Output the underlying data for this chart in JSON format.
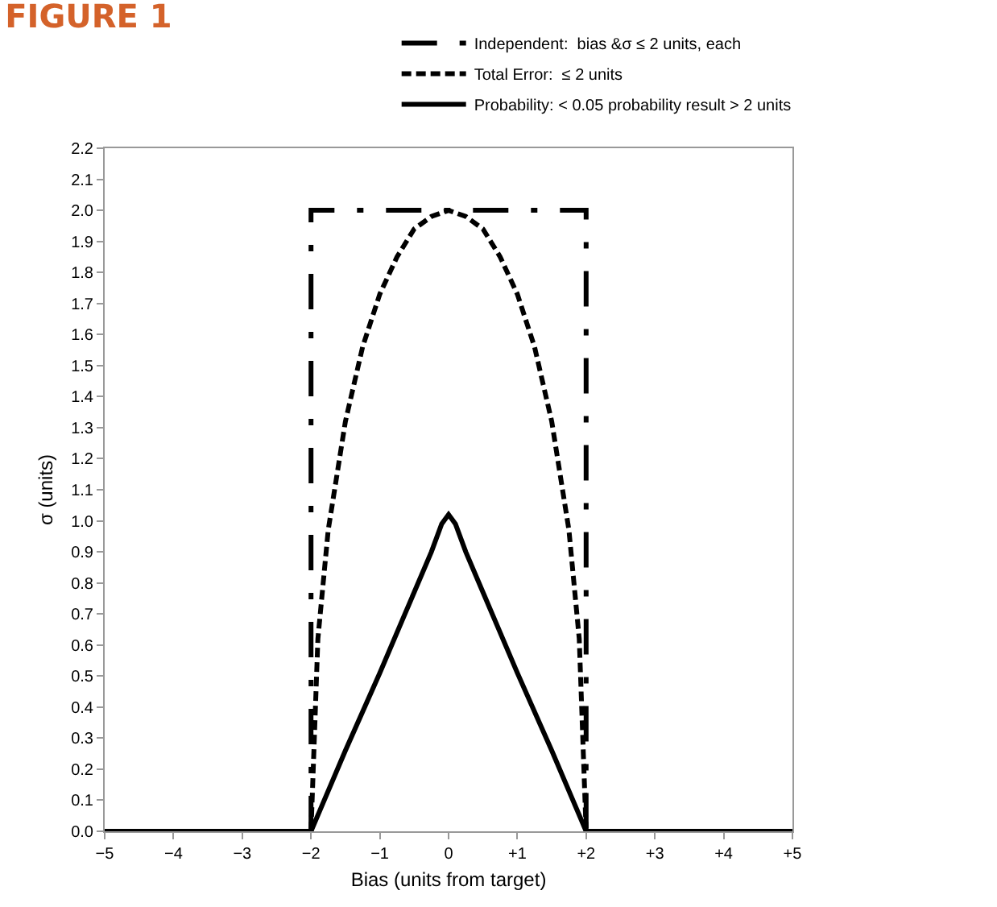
{
  "chart_data": {
    "type": "line",
    "title": "FIGURE 1",
    "xlabel": "Bias (units from target)",
    "ylabel": "σ (units)",
    "xlim": [
      -5,
      5
    ],
    "xticks": [
      {
        "value": -5,
        "label": "−5"
      },
      {
        "value": -4,
        "label": "−4"
      },
      {
        "value": -3,
        "label": "−3"
      },
      {
        "value": -2,
        "label": "−2"
      },
      {
        "value": -1,
        "label": "−1"
      },
      0,
      {
        "value": 1,
        "label": "+1"
      },
      {
        "value": 2,
        "label": "+2"
      },
      {
        "value": 3,
        "label": "+3"
      },
      {
        "value": 4,
        "label": "+4"
      },
      {
        "value": 5,
        "label": "+5"
      }
    ],
    "ylim": [
      0,
      2.2
    ],
    "yticks": [
      {
        "value": 0,
        "label": "0.0"
      },
      0.1,
      0.2,
      0.3,
      0.4,
      0.5,
      0.6,
      0.7,
      0.8,
      0.9,
      {
        "value": 1,
        "label": "1.0"
      },
      1.1,
      1.2,
      1.3,
      1.4,
      1.5,
      1.6,
      1.7,
      1.8,
      1.9,
      {
        "value": 2,
        "label": "2.0"
      },
      2.1,
      2.2
    ],
    "grid": false,
    "legend": "top right",
    "marker": "none",
    "series": [
      {
        "name": "Independent:  bias &σ ≤ 2 units, each",
        "color": "#000000",
        "line_style": "dashdot",
        "x": [
          -2,
          -2,
          2,
          2
        ],
        "values": [
          0,
          2,
          2,
          0
        ]
      },
      {
        "name": "Total Error:  ≤ 2 units",
        "color": "#000000",
        "line_style": "dashed",
        "x": [
          -2,
          -1.9,
          -1.75,
          -1.5,
          -1.25,
          -1,
          -0.75,
          -0.5,
          -0.25,
          0,
          0.25,
          0.5,
          0.75,
          1,
          1.25,
          1.5,
          1.75,
          1.9,
          2
        ],
        "values": [
          0,
          0.62,
          0.97,
          1.32,
          1.56,
          1.73,
          1.85,
          1.94,
          1.98,
          2,
          1.98,
          1.94,
          1.85,
          1.73,
          1.56,
          1.32,
          0.97,
          0.62,
          0
        ]
      },
      {
        "name": "Probability: < 0.05 probability result > 2 units",
        "color": "#000000",
        "line_style": "solid",
        "x": [
          -5,
          -2,
          -1.5,
          -1,
          -0.5,
          -0.25,
          -0.1,
          0,
          0.1,
          0.25,
          0.5,
          1,
          1.5,
          2,
          5
        ],
        "values": [
          0,
          0,
          0.26,
          0.51,
          0.77,
          0.9,
          0.99,
          1.02,
          0.99,
          0.9,
          0.77,
          0.51,
          0.26,
          0,
          0
        ]
      }
    ]
  }
}
